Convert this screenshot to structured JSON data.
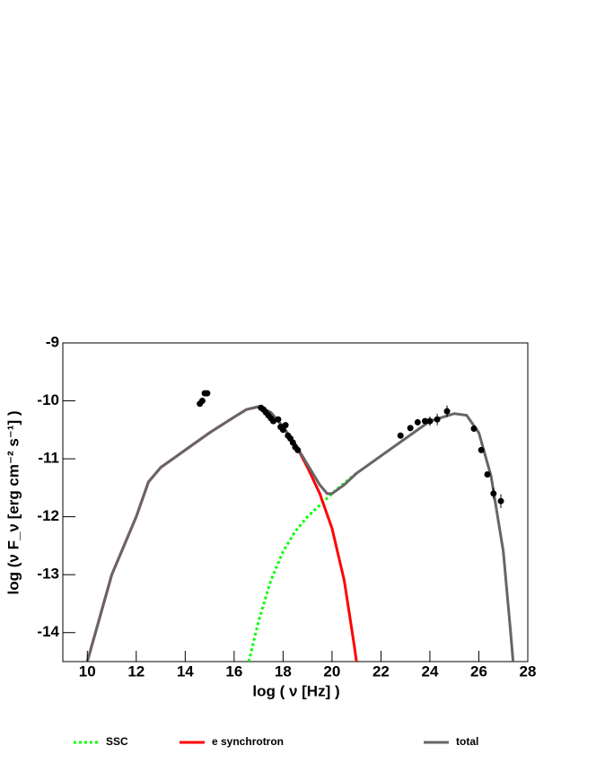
{
  "chart_data": {
    "type": "line",
    "x_label": "log ( ν [Hz] )",
    "y_label": "log (ν F_ν [erg cm⁻² s⁻¹] )",
    "xlim": [
      9,
      28
    ],
    "ylim": [
      -14.5,
      -9
    ],
    "xticks": [
      10,
      12,
      14,
      16,
      18,
      20,
      22,
      24,
      26,
      28
    ],
    "yticks": [
      -14,
      -13,
      -12,
      -11,
      -10,
      -9
    ],
    "series": [
      {
        "name": "SSC",
        "color": "#00ff00",
        "dashed": true,
        "x": [
          16.6,
          17,
          17.5,
          18,
          18.5,
          19,
          19.5,
          20,
          20.5,
          21
        ],
        "values": [
          -14.5,
          -13.8,
          -13.1,
          -12.6,
          -12.25,
          -12.0,
          -11.8,
          -11.6,
          -11.42,
          -11.25
        ]
      },
      {
        "name": "e synchrotron",
        "color": "#ff0000",
        "dashed": false,
        "x": [
          10,
          11,
          12,
          12.5,
          13,
          14,
          15,
          16,
          16.5,
          17,
          17.5,
          18,
          18.5,
          19,
          19.5,
          20,
          20.5,
          20.9,
          21
        ],
        "values": [
          -14.5,
          -13.0,
          -12.0,
          -11.4,
          -11.15,
          -10.85,
          -10.55,
          -10.28,
          -10.15,
          -10.1,
          -10.2,
          -10.45,
          -10.75,
          -11.15,
          -11.6,
          -12.2,
          -13.1,
          -14.2,
          -14.5
        ]
      },
      {
        "name": "total",
        "color": "#666666",
        "dashed": false,
        "x": [
          10,
          11,
          12,
          12.5,
          13,
          14,
          15,
          16,
          16.5,
          17,
          17.5,
          18,
          18.5,
          19,
          19.5,
          19.8,
          20,
          20.5,
          21,
          22,
          23,
          24,
          25,
          25.5,
          26,
          26.5,
          27,
          27.3,
          27.4
        ],
        "values": [
          -14.5,
          -13.0,
          -12.0,
          -11.4,
          -11.15,
          -10.85,
          -10.55,
          -10.28,
          -10.15,
          -10.1,
          -10.2,
          -10.45,
          -10.75,
          -11.1,
          -11.45,
          -11.6,
          -11.6,
          -11.45,
          -11.25,
          -10.95,
          -10.65,
          -10.35,
          -10.22,
          -10.25,
          -10.55,
          -11.3,
          -12.6,
          -14.0,
          -14.5
        ]
      }
    ],
    "points": {
      "color": "#000000",
      "x": [
        14.6,
        14.7,
        14.8,
        14.9,
        17.1,
        17.2,
        17.3,
        17.4,
        17.5,
        17.6,
        17.8,
        17.9,
        18.0,
        18.1,
        18.2,
        18.3,
        18.4,
        18.5,
        18.6,
        22.8,
        23.2,
        23.5,
        23.8,
        24.0,
        24.3,
        24.7,
        25.8,
        26.1,
        26.35,
        26.6,
        26.9
      ],
      "values": [
        -10.05,
        -10.0,
        -9.87,
        -9.87,
        -10.12,
        -10.15,
        -10.2,
        -10.25,
        -10.3,
        -10.35,
        -10.32,
        -10.45,
        -10.5,
        -10.42,
        -10.6,
        -10.65,
        -10.72,
        -10.8,
        -10.85,
        -10.6,
        -10.47,
        -10.37,
        -10.35,
        -10.35,
        -10.32,
        -10.18,
        -10.48,
        -10.85,
        -11.27,
        -11.6,
        -11.73
      ],
      "errors": [
        null,
        null,
        null,
        null,
        null,
        null,
        null,
        null,
        null,
        null,
        null,
        null,
        null,
        null,
        null,
        null,
        null,
        null,
        null,
        null,
        null,
        null,
        null,
        0.08,
        0.1,
        0.1,
        null,
        null,
        null,
        0.1,
        0.12
      ]
    }
  }
}
